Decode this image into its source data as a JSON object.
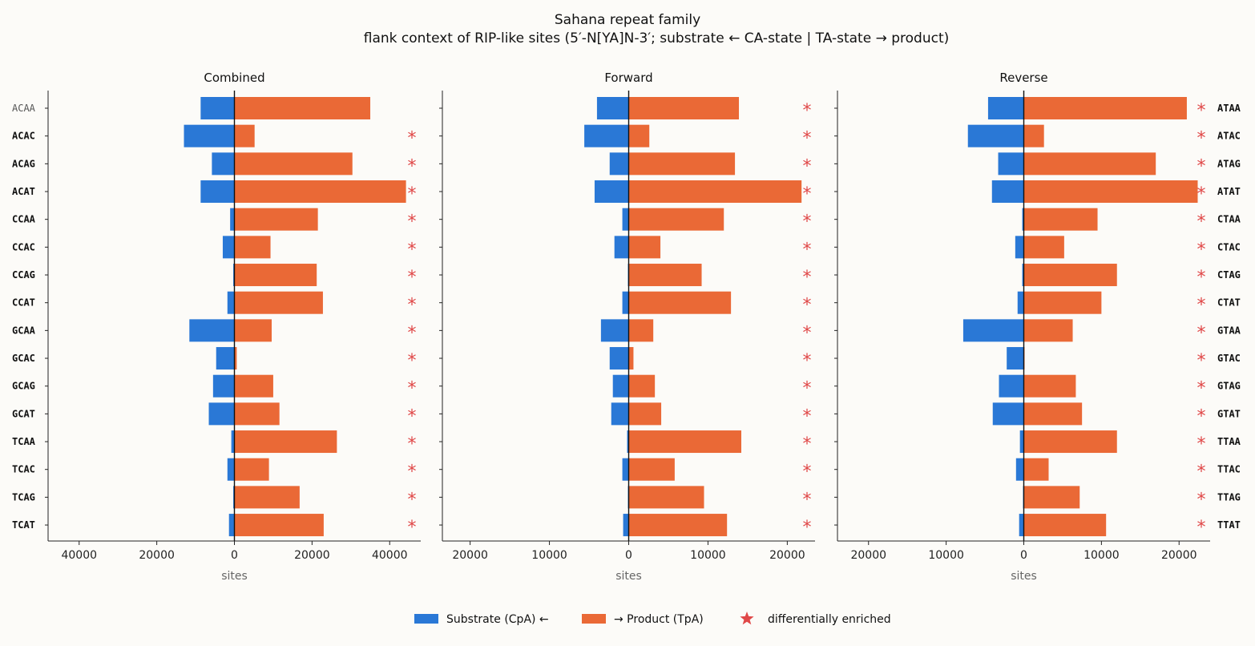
{
  "chart_data": {
    "type": "bar",
    "title": "Sahana repeat family",
    "subtitle": "flank context of RIP-like sites (5′-N[YA]N-3′; substrate ← CA-state | TA-state → product)",
    "xlabel": "sites",
    "legend": {
      "placement": "bottom-center",
      "entries": [
        {
          "label": "Substrate (CpA) ←",
          "color": "#2a78d6"
        },
        {
          "label": "→ Product (TpA)",
          "color": "#ea6936"
        },
        {
          "label": "differentially enriched",
          "color": "#e04848"
        }
      ]
    },
    "colors": {
      "substrate": "#2a78d6",
      "product": "#ea6936",
      "star": "#e04848"
    },
    "panels": [
      {
        "title": "Combined",
        "xlim": [
          -48000,
          48000
        ],
        "xticks": [
          -40000,
          -20000,
          0,
          20000,
          40000
        ],
        "xtick_labels": [
          "40000",
          "20000",
          "0",
          "20000",
          "40000"
        ],
        "label_side": "left",
        "categories": [
          "ACAA",
          "ACAC",
          "ACAG",
          "ACAT",
          "CCAA",
          "CCAC",
          "CCAG",
          "CCAT",
          "GCAA",
          "GCAC",
          "GCAG",
          "GCAT",
          "TCAA",
          "TCAC",
          "TCAG",
          "TCAT"
        ],
        "substrate": [
          8700,
          13000,
          5800,
          8700,
          1100,
          3000,
          300,
          1800,
          11600,
          4700,
          5500,
          6600,
          800,
          1800,
          300,
          1400
        ],
        "product": [
          35000,
          5200,
          30400,
          44200,
          21500,
          9300,
          21200,
          22800,
          9600,
          600,
          10000,
          11600,
          26400,
          8900,
          16800,
          23000
        ],
        "enriched": [
          false,
          true,
          true,
          true,
          true,
          true,
          true,
          true,
          true,
          true,
          true,
          true,
          true,
          true,
          true,
          true
        ]
      },
      {
        "title": "Forward",
        "xlim": [
          -23500,
          23500
        ],
        "xticks": [
          -20000,
          -10000,
          0,
          10000,
          20000
        ],
        "xtick_labels": [
          "20000",
          "10000",
          "0",
          "10000",
          "20000"
        ],
        "label_side": "none",
        "categories": [
          "ACAA",
          "ACAC",
          "ACAG",
          "ACAT",
          "CCAA",
          "CCAC",
          "CCAG",
          "CCAT",
          "GCAA",
          "GCAC",
          "GCAG",
          "GCAT",
          "TCAA",
          "TCAC",
          "TCAG",
          "TCAT"
        ],
        "substrate": [
          4000,
          5600,
          2400,
          4300,
          800,
          1800,
          100,
          800,
          3500,
          2400,
          2000,
          2200,
          200,
          800,
          100,
          700
        ],
        "product": [
          13900,
          2600,
          13400,
          21800,
          12000,
          4000,
          9200,
          12900,
          3100,
          600,
          3300,
          4100,
          14200,
          5800,
          9500,
          12400
        ],
        "enriched": [
          true,
          true,
          true,
          true,
          true,
          true,
          true,
          true,
          true,
          true,
          true,
          true,
          true,
          true,
          true,
          true
        ]
      },
      {
        "title": "Reverse",
        "xlim": [
          -24000,
          24000
        ],
        "xticks": [
          -20000,
          -10000,
          0,
          10000,
          20000
        ],
        "xtick_labels": [
          "20000",
          "10000",
          "0",
          "10000",
          "20000"
        ],
        "label_side": "right",
        "categories": [
          "ATAA",
          "ATAC",
          "ATAG",
          "ATAT",
          "CTAA",
          "CTAC",
          "CTAG",
          "CTAT",
          "GTAA",
          "GTAC",
          "GTAG",
          "GTAT",
          "TTAA",
          "TTAC",
          "TTAG",
          "TTAT"
        ],
        "substrate": [
          4600,
          7200,
          3300,
          4100,
          200,
          1100,
          200,
          800,
          7800,
          2200,
          3200,
          4000,
          500,
          1000,
          100,
          600
        ],
        "product": [
          21000,
          2600,
          17000,
          22400,
          9500,
          5200,
          12000,
          10000,
          6300,
          100,
          6700,
          7500,
          12000,
          3200,
          7200,
          10600
        ],
        "enriched": [
          true,
          true,
          true,
          true,
          true,
          true,
          true,
          true,
          true,
          true,
          true,
          true,
          true,
          true,
          true,
          true
        ]
      }
    ]
  }
}
